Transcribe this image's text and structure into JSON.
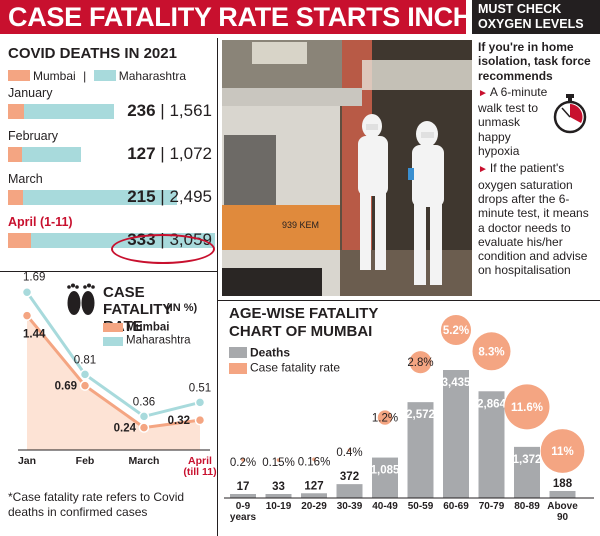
{
  "headline": "CASE FATALITY RATE STARTS INCHING UP",
  "sidebar": {
    "title": "MUST CHECK OXYGEN LEVELS",
    "lead": "If you're in home isolation, task force recommends",
    "bullets": [
      "A 6-minute walk test to unmask happy hypoxia",
      "If the patient's oxygen saturation drops after the 6-minute test, it means a doctor needs to evaluate his/her condition and advise on hospitalisation"
    ]
  },
  "colors": {
    "mumbai": "#f4a582",
    "maharashtra": "#a8dadc",
    "red": "#c8102e",
    "deaths": "#a7a9ac",
    "fatality_dot": "#f4a582"
  },
  "photo": {
    "van_plate": "939 KEM"
  },
  "chart_data": [
    {
      "type": "bar",
      "title": "COVID DEATHS IN 2021",
      "legend": [
        "Mumbai",
        "Maharashtra"
      ],
      "categories": [
        "January",
        "February",
        "March",
        "April (1-11)"
      ],
      "series": [
        {
          "name": "Mumbai",
          "values": [
            236,
            127,
            215,
            333
          ]
        },
        {
          "name": "Maharashtra",
          "values": [
            1561,
            1072,
            2495,
            3059
          ]
        }
      ],
      "display": [
        {
          "mumbai": "236",
          "maharashtra": "1,561"
        },
        {
          "mumbai": "127",
          "maharashtra": "1,072"
        },
        {
          "mumbai": "215",
          "maharashtra": "2,495"
        },
        {
          "mumbai": "333",
          "maharashtra": "3,059"
        }
      ],
      "xlim": [
        0,
        3059
      ]
    },
    {
      "type": "line",
      "title": "CASE FATALITY RATE",
      "subtitle": "(IN %)",
      "categories": [
        "Jan",
        "Feb",
        "March",
        "April (till 11)"
      ],
      "series": [
        {
          "name": "Mumbai",
          "values": [
            1.44,
            0.69,
            0.24,
            0.32
          ]
        },
        {
          "name": "Maharashtra",
          "values": [
            1.69,
            0.81,
            0.36,
            0.51
          ]
        }
      ],
      "ylim": [
        0,
        1.8
      ],
      "footnote": "*Case fatality rate refers to Covid deaths in confirmed cases"
    },
    {
      "type": "bar",
      "title": "AGE-WISE FATALITY CHART OF MUMBAI",
      "legend": [
        "Deaths",
        "Case fatality rate"
      ],
      "categories": [
        "0-9 years",
        "10-19",
        "20-29",
        "30-39",
        "40-49",
        "50-59",
        "60-69",
        "70-79",
        "80-89",
        "Above 90"
      ],
      "series": [
        {
          "name": "Deaths",
          "values": [
            17,
            33,
            127,
            372,
            1085,
            2572,
            3435,
            2864,
            1372,
            188
          ]
        },
        {
          "name": "Case fatality rate",
          "values": [
            0.2,
            0.15,
            0.16,
            0.4,
            1.2,
            2.8,
            5.2,
            8.3,
            11.6,
            11
          ]
        }
      ],
      "deaths_labels": [
        "17",
        "33",
        "127",
        "372",
        "1,085",
        "2,572",
        "3,435",
        "2,864",
        "1,372",
        "188"
      ],
      "rate_labels": [
        "0.2%",
        "0.15%",
        "0.16%",
        "0.4%",
        "1.2%",
        "2.8%",
        "5.2%",
        "8.3%",
        "11.6%",
        "11%"
      ],
      "ylim": [
        0,
        3435
      ]
    }
  ]
}
